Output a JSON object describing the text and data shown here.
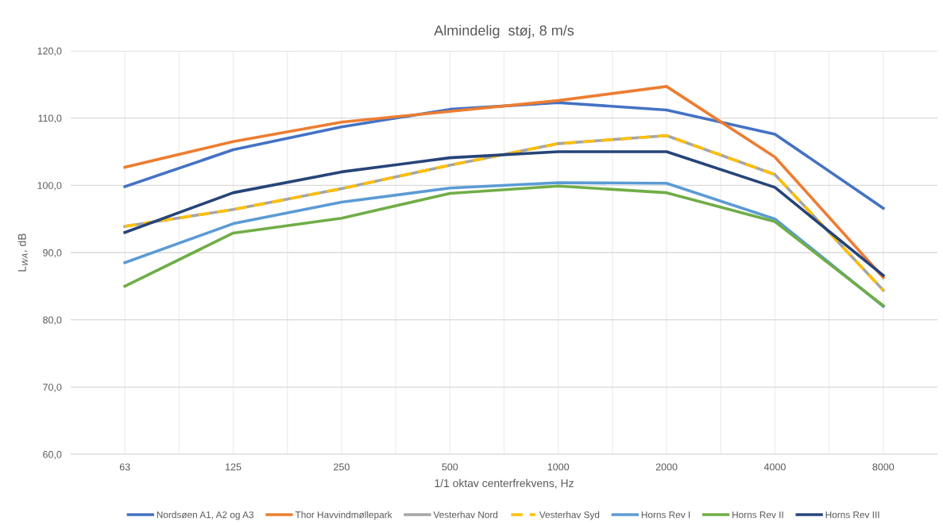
{
  "chart_data": {
    "type": "line",
    "title": "Almindelig  støj, 8 m/s",
    "xlabel": "1/1 oktav centerfrekvens, Hz",
    "ylabel": "L$_{WA}$, dB",
    "categories": [
      "63",
      "125",
      "250",
      "500",
      "1000",
      "2000",
      "4000",
      "8000"
    ],
    "series": [
      {
        "name": "Nordsøen A1, A2 og A3",
        "color": "#4472c4",
        "values": [
          99.8,
          105.3,
          108.7,
          111.3,
          112.3,
          111.2,
          107.6,
          96.6
        ]
      },
      {
        "name": "Thor Havvindmøllepark",
        "color": "#ed7d31",
        "values": [
          102.7,
          106.5,
          109.4,
          111.0,
          112.6,
          114.7,
          104.2,
          86.3
        ]
      },
      {
        "name": "Vesterhav Nord",
        "color": "#a5a5a5",
        "values": [
          93.9,
          96.4,
          99.5,
          103.0,
          106.2,
          107.4,
          101.6,
          84.4
        ]
      },
      {
        "name": "Vesterhav Syd",
        "color": "#ffc000",
        "line_style": "dashed",
        "values": [
          93.9,
          96.4,
          99.5,
          103.0,
          106.2,
          107.4,
          101.6,
          84.4
        ]
      },
      {
        "name": "Horns Rev I",
        "color": "#5b9bd5",
        "values": [
          88.5,
          94.3,
          97.5,
          99.6,
          100.4,
          100.3,
          95.0,
          82.0
        ]
      },
      {
        "name": "Horns Rev II",
        "color": "#70ad47",
        "values": [
          85.0,
          92.9,
          95.1,
          98.8,
          99.9,
          98.9,
          94.6,
          82.1
        ]
      },
      {
        "name": "Horns Rev III",
        "color": "#264478",
        "values": [
          93.0,
          98.9,
          102.0,
          104.1,
          105.0,
          105.0,
          99.7,
          86.6
        ]
      }
    ],
    "ylim": [
      60,
      120
    ],
    "yticks": [
      {
        "value": 60,
        "label": "60,0"
      },
      {
        "value": 70,
        "label": "70,0"
      },
      {
        "value": 80,
        "label": "80,0"
      },
      {
        "value": 90,
        "label": "90,0"
      },
      {
        "value": 100,
        "label": "100,0"
      },
      {
        "value": 110,
        "label": "110,0"
      },
      {
        "value": 120,
        "label": "120,0"
      }
    ],
    "grid": true,
    "legend": "bottom",
    "line_style": "solid",
    "marker": "none"
  }
}
